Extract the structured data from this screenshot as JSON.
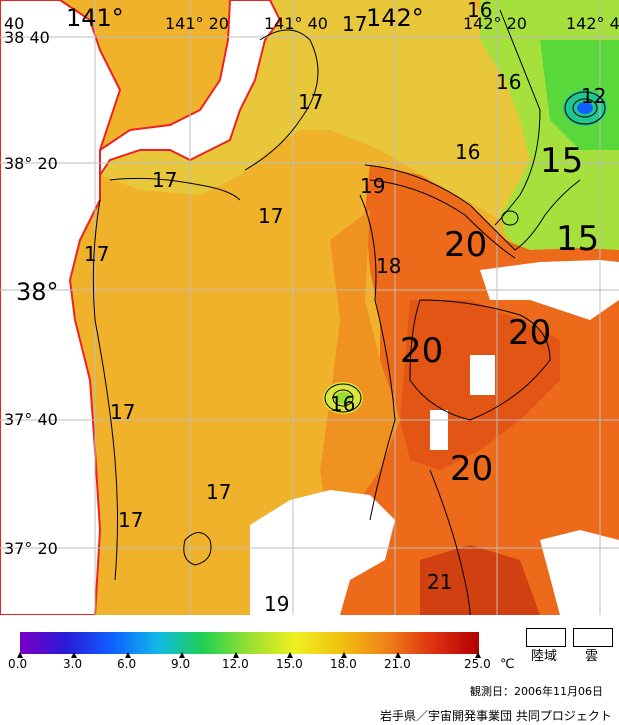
{
  "map": {
    "lon_labels": [
      "141°",
      "141° 20",
      "141° 40",
      "142°",
      "142° 20",
      "142° 4",
      "40"
    ],
    "lat_labels": [
      "38 40",
      "38° 20",
      "38°",
      "37° 40",
      "37° 20"
    ],
    "isotherm_labels": [
      "17",
      "17",
      "16",
      "16",
      "17",
      "17",
      "17",
      "19",
      "20",
      "15",
      "15",
      "18",
      "20",
      "20",
      "16",
      "17",
      "17",
      "17",
      "20",
      "21",
      "19",
      "12",
      "16"
    ],
    "colors": {
      "land": "#ffffff",
      "cloud": "#ffffff",
      "coast": "#ee2222",
      "grid": "#bdbdbd",
      "contour": "#000000"
    }
  },
  "colorbar": {
    "ticks": [
      "0.0",
      "3.0",
      "6.0",
      "9.0",
      "12.0",
      "15.0",
      "18.0",
      "21.0",
      "25.0"
    ],
    "unit": "℃",
    "stops": [
      "#7a00c8",
      "#2a1ad8",
      "#1060ff",
      "#10b8e8",
      "#20d050",
      "#98e030",
      "#f0f020",
      "#f0c010",
      "#f08018",
      "#e03010",
      "#b00000"
    ]
  },
  "legend": {
    "land_label": "陸域",
    "cloud_label": "雲"
  },
  "footer": {
    "date": "観測日：2006年11月06日",
    "credit": "岩手県／宇宙開発事業団 共同プロジェクト"
  }
}
